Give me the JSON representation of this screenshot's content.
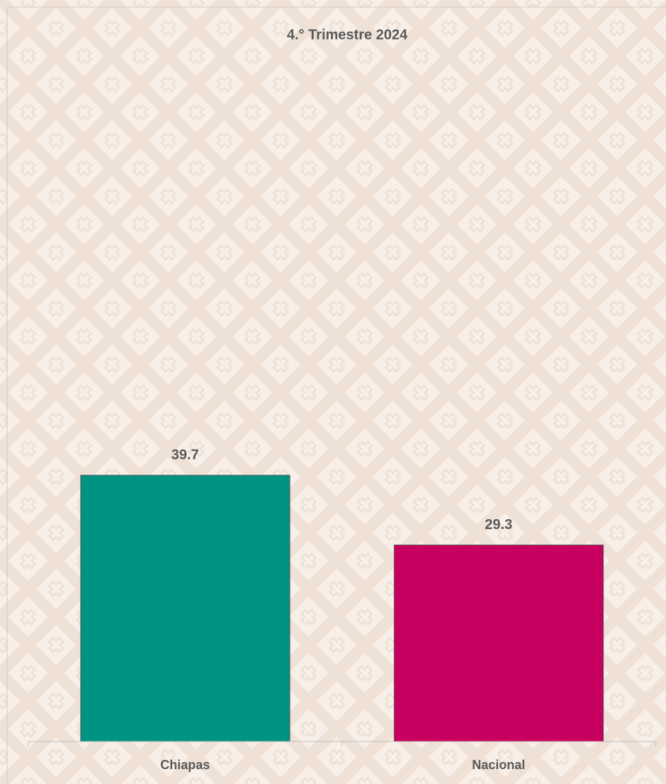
{
  "chart_data": {
    "type": "bar",
    "title": "4.° Trimestre 2024",
    "categories": [
      "Chiapas",
      "Nacional"
    ],
    "values": [
      39.7,
      29.3
    ],
    "colors": [
      "#009383",
      "#c8005f"
    ],
    "ylim": [
      0,
      100
    ]
  }
}
